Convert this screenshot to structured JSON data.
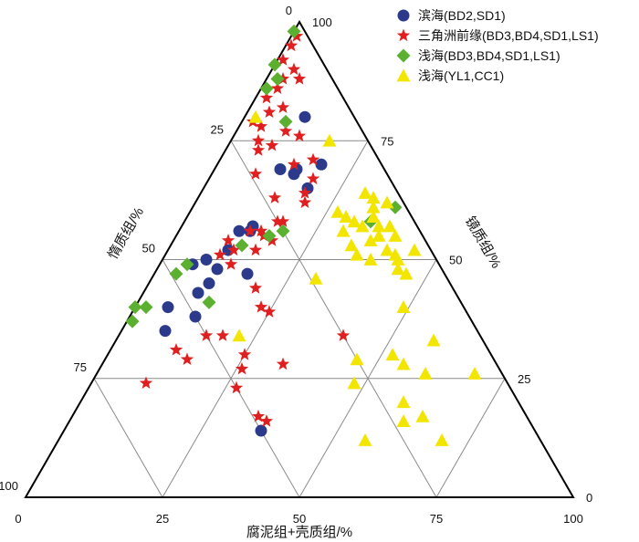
{
  "chart_data": {
    "type": "ternary",
    "axes": {
      "bottom": {
        "label": "腐泥组+壳质组/%",
        "ticks": [
          "0",
          "25",
          "50",
          "75",
          "100"
        ]
      },
      "right": {
        "label": "镜质组/%",
        "ticks": [
          "0",
          "25",
          "50",
          "75",
          "100"
        ]
      },
      "left": {
        "label": "惰质组/%",
        "ticks": [
          "0",
          "25",
          "50",
          "75",
          "100"
        ]
      }
    },
    "grid": true,
    "legend_position": "top-right",
    "series": [
      {
        "name": "滨海(BD2,SD1)",
        "marker": "circle",
        "color": "#2c3a8c",
        "points": [
          {
            "b": 11,
            "r": 80
          },
          {
            "b": 12,
            "r": 69
          },
          {
            "b": 13,
            "r": 57
          },
          {
            "b": 15,
            "r": 69
          },
          {
            "b": 15,
            "r": 68
          },
          {
            "b": 19,
            "r": 70
          },
          {
            "b": 19,
            "r": 65
          },
          {
            "b": 11,
            "r": 52
          },
          {
            "b": 11,
            "r": 48
          },
          {
            "b": 11,
            "r": 45
          },
          {
            "b": 10,
            "r": 43
          },
          {
            "b": 6,
            "r": 40
          },
          {
            "b": 12,
            "r": 38
          },
          {
            "b": 8,
            "r": 35
          },
          {
            "b": 13,
            "r": 56
          },
          {
            "b": 11,
            "r": 56
          },
          {
            "b": 17,
            "r": 47
          },
          {
            "b": 6,
            "r": 49
          },
          {
            "b": 8,
            "r": 50
          },
          {
            "b": 36,
            "r": 14
          }
        ]
      },
      {
        "name": "三角洲前缘(BD3,BD4,SD1,LS1)",
        "marker": "star",
        "color": "#e02020",
        "points": [
          {
            "b": 1,
            "r": 97
          },
          {
            "b": 1,
            "r": 95
          },
          {
            "b": 1,
            "r": 92
          },
          {
            "b": 4,
            "r": 90
          },
          {
            "b": 3,
            "r": 88
          },
          {
            "b": 6,
            "r": 88
          },
          {
            "b": 3,
            "r": 86
          },
          {
            "b": 2,
            "r": 84
          },
          {
            "b": 6,
            "r": 82
          },
          {
            "b": 4,
            "r": 81
          },
          {
            "b": 2,
            "r": 79
          },
          {
            "b": 4,
            "r": 78
          },
          {
            "b": 9,
            "r": 77
          },
          {
            "b": 5,
            "r": 75
          },
          {
            "b": 8,
            "r": 74
          },
          {
            "b": 6,
            "r": 73
          },
          {
            "b": 12,
            "r": 76
          },
          {
            "b": 14,
            "r": 70
          },
          {
            "b": 17,
            "r": 71
          },
          {
            "b": 19,
            "r": 67
          },
          {
            "b": 19,
            "r": 64
          },
          {
            "b": 14,
            "r": 63
          },
          {
            "b": 8,
            "r": 68
          },
          {
            "b": 20,
            "r": 62
          },
          {
            "b": 18,
            "r": 58
          },
          {
            "b": 17,
            "r": 58
          },
          {
            "b": 15,
            "r": 56
          },
          {
            "b": 13,
            "r": 56
          },
          {
            "b": 16,
            "r": 55
          },
          {
            "b": 18,
            "r": 54
          },
          {
            "b": 10,
            "r": 54
          },
          {
            "b": 16,
            "r": 52
          },
          {
            "b": 12,
            "r": 52
          },
          {
            "b": 10,
            "r": 51
          },
          {
            "b": 13,
            "r": 49
          },
          {
            "b": 20,
            "r": 44
          },
          {
            "b": 33,
            "r": 28
          },
          {
            "b": 25,
            "r": 39
          },
          {
            "b": 23,
            "r": 40
          },
          {
            "b": 19,
            "r": 34
          },
          {
            "b": 16,
            "r": 34
          },
          {
            "b": 12,
            "r": 31
          },
          {
            "b": 15,
            "r": 29
          },
          {
            "b": 10,
            "r": 24
          },
          {
            "b": 25,
            "r": 30
          },
          {
            "b": 26,
            "r": 27
          },
          {
            "b": 27,
            "r": 23
          },
          {
            "b": 34,
            "r": 17
          },
          {
            "b": 36,
            "r": 16
          },
          {
            "b": 41,
            "r": 34
          }
        ]
      },
      {
        "name": "浅海(BD3,BD4,SD1,LS1)",
        "marker": "diamond",
        "color": "#5cb030",
        "points": [
          {
            "b": 0,
            "r": 98
          },
          {
            "b": 0,
            "r": 91
          },
          {
            "b": 2,
            "r": 88
          },
          {
            "b": 1,
            "r": 86
          },
          {
            "b": 8,
            "r": 79
          },
          {
            "b": 34,
            "r": 58
          },
          {
            "b": 19,
            "r": 56
          },
          {
            "b": 17,
            "r": 55
          },
          {
            "b": 13,
            "r": 53
          },
          {
            "b": 5,
            "r": 49
          },
          {
            "b": 4,
            "r": 47
          },
          {
            "b": 2,
            "r": 40
          },
          {
            "b": 0,
            "r": 40
          },
          {
            "b": 13,
            "r": 41
          },
          {
            "b": 1,
            "r": 37
          },
          {
            "b": 37,
            "r": 61
          }
        ]
      },
      {
        "name": "浅海(YL1,CC1)",
        "marker": "triangle",
        "color": "#f2e600",
        "points": [
          {
            "b": 2,
            "r": 80
          },
          {
            "b": 18,
            "r": 75
          },
          {
            "b": 33,
            "r": 61
          },
          {
            "b": 30,
            "r": 64
          },
          {
            "b": 32,
            "r": 63
          },
          {
            "b": 35,
            "r": 62
          },
          {
            "b": 34,
            "r": 59
          },
          {
            "b": 36,
            "r": 57
          },
          {
            "b": 33,
            "r": 57
          },
          {
            "b": 38,
            "r": 57
          },
          {
            "b": 40,
            "r": 55
          },
          {
            "b": 27,
            "r": 60
          },
          {
            "b": 29,
            "r": 59
          },
          {
            "b": 31,
            "r": 58
          },
          {
            "b": 40,
            "r": 52
          },
          {
            "b": 42,
            "r": 51
          },
          {
            "b": 43,
            "r": 50
          },
          {
            "b": 45,
            "r": 52
          },
          {
            "b": 33,
            "r": 53
          },
          {
            "b": 36,
            "r": 54
          },
          {
            "b": 37,
            "r": 55
          },
          {
            "b": 30,
            "r": 56
          },
          {
            "b": 35,
            "r": 51
          },
          {
            "b": 38,
            "r": 50
          },
          {
            "b": 44,
            "r": 48
          },
          {
            "b": 46,
            "r": 47
          },
          {
            "b": 22,
            "r": 34
          },
          {
            "b": 30,
            "r": 46
          },
          {
            "b": 49,
            "r": 40
          },
          {
            "b": 58,
            "r": 33
          },
          {
            "b": 46,
            "r": 29
          },
          {
            "b": 52,
            "r": 30
          },
          {
            "b": 55,
            "r": 28
          },
          {
            "b": 69,
            "r": 26
          },
          {
            "b": 60,
            "r": 26
          },
          {
            "b": 48,
            "r": 24
          },
          {
            "b": 59,
            "r": 20
          },
          {
            "b": 61,
            "r": 16
          },
          {
            "b": 70,
            "r": 12
          },
          {
            "b": 64,
            "r": 17
          },
          {
            "b": 56,
            "r": 12
          }
        ]
      }
    ]
  }
}
